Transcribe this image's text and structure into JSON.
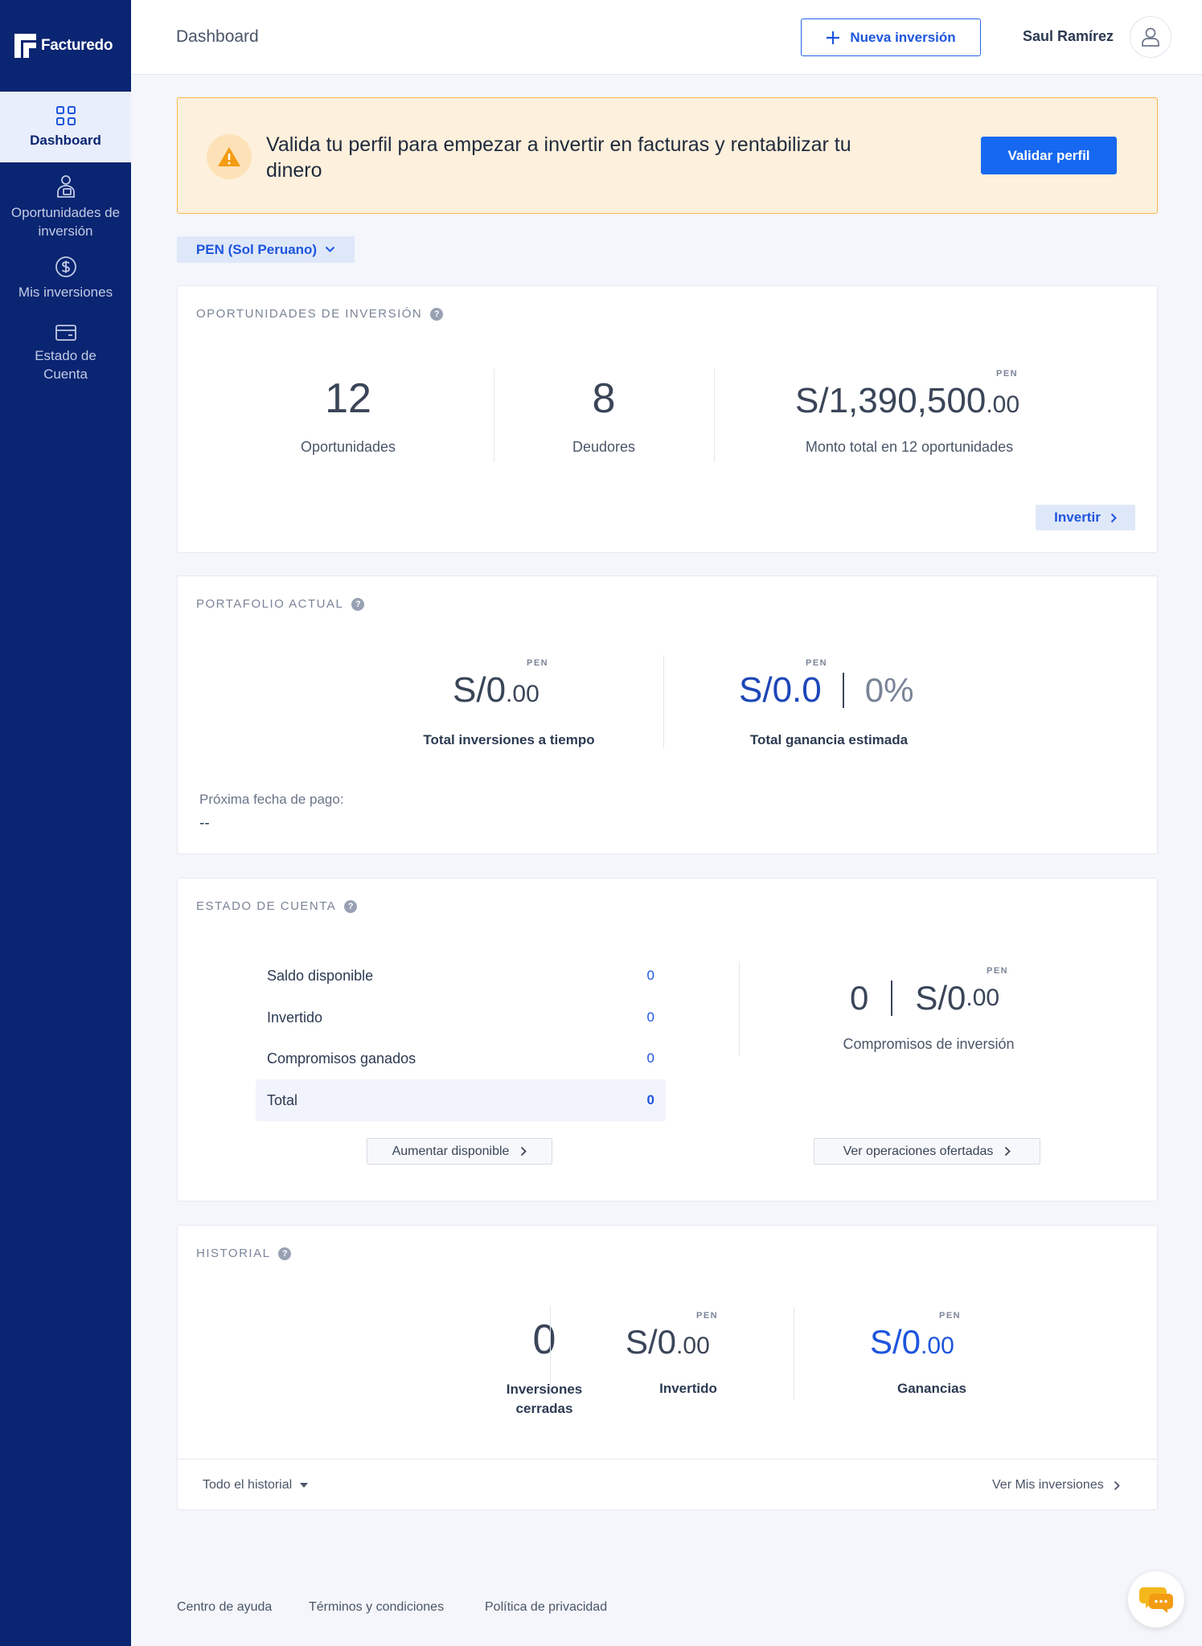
{
  "app": {
    "brand": "Facturedo"
  },
  "sidebar": {
    "items": [
      {
        "label": "Dashboard",
        "icon": "grid-icon"
      },
      {
        "label": "Oportunidades de inversión",
        "icon": "investor-icon"
      },
      {
        "label": "Mis inversiones",
        "icon": "dollar-circle-icon"
      },
      {
        "label": "Estado de Cuenta",
        "icon": "wallet-icon"
      }
    ]
  },
  "header": {
    "title": "Dashboard",
    "new_button": "Nueva inversión",
    "user_name": "Saul Ramírez"
  },
  "alert": {
    "text": "Valida tu perfil para empezar a invertir en facturas y rentabilizar tu dinero",
    "button": "Validar perfil"
  },
  "currency": {
    "selected": "PEN (Sol Peruano)"
  },
  "oportunidades": {
    "title": "OPORTUNIDADES DE INVERSIÓN",
    "count": "12",
    "count_label": "Oportunidades",
    "debtors": "8",
    "debtors_label": "Deudores",
    "currency_tag": "PEN",
    "amount": "S/1,390,500",
    "amount_cents": ".00",
    "amount_label": "Monto total en 12 oportunidades",
    "button": "Invertir"
  },
  "portafolio": {
    "title": "PORTAFOLIO ACTUAL",
    "tag1": "PEN",
    "total": "S/0",
    "total_cents": ".00",
    "total_label": "Total inversiones a tiempo",
    "tag2": "PEN",
    "gain": "S/0.0",
    "gain_pct": "0%",
    "gain_label": "Total ganancia estimada",
    "next_payment_label": "Próxima fecha de pago:",
    "next_payment_value": "--"
  },
  "estado": {
    "title": "ESTADO DE CUENTA",
    "rows": [
      {
        "label": "Saldo disponible",
        "value": "0"
      },
      {
        "label": "Invertido",
        "value": "0"
      },
      {
        "label": "Compromisos ganados",
        "value": "0"
      },
      {
        "label": "Total",
        "value": "0"
      }
    ],
    "commit_count": "0",
    "tag": "PEN",
    "commit_amount": "S/0",
    "commit_cents": ".00",
    "commit_label": "Compromisos de inversión",
    "btn_increase": "Aumentar disponible",
    "btn_offers": "Ver operaciones ofertadas"
  },
  "historial": {
    "title": "HISTORIAL",
    "closed": "0",
    "closed_label_1": "Inversiones",
    "closed_label_2": "cerradas",
    "tag1": "PEN",
    "invested": "S/0",
    "invested_cents": ".00",
    "invested_label": "Invertido",
    "tag2": "PEN",
    "gains": "S/0",
    "gains_cents": ".00",
    "gains_label": "Ganancias",
    "filter": "Todo el historial",
    "link": "Ver Mis inversiones"
  },
  "footer": {
    "help": "Centro de ayuda",
    "terms": "Términos y condiciones",
    "privacy": "Política de privacidad"
  },
  "colors": {
    "sidebar": "#0a2571",
    "accent": "#1668f0",
    "alert_bg": "#fdf0dc",
    "alert_border": "#f6b94e",
    "value_blue": "#1d47b8"
  }
}
